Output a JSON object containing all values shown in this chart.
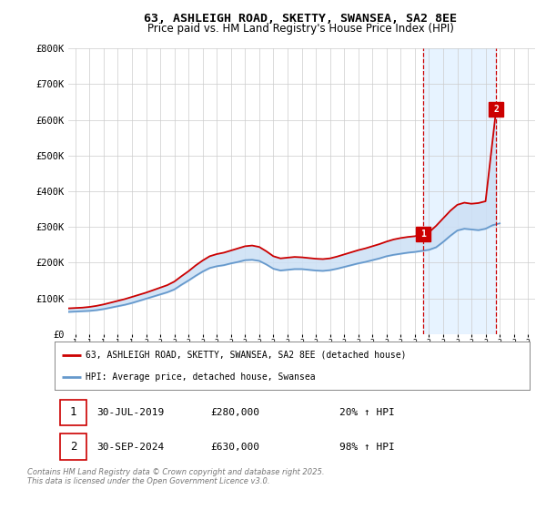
{
  "title": "63, ASHLEIGH ROAD, SKETTY, SWANSEA, SA2 8EE",
  "subtitle": "Price paid vs. HM Land Registry's House Price Index (HPI)",
  "hpi_label": "HPI: Average price, detached house, Swansea",
  "property_label": "63, ASHLEIGH ROAD, SKETTY, SWANSEA, SA2 8EE (detached house)",
  "footnote": "Contains HM Land Registry data © Crown copyright and database right 2025.\nThis data is licensed under the Open Government Licence v3.0.",
  "sale1": {
    "date": "30-JUL-2019",
    "price": 280000,
    "hpi_pct": "20%",
    "label": "1"
  },
  "sale2": {
    "date": "30-SEP-2024",
    "price": 630000,
    "hpi_pct": "98%",
    "label": "2"
  },
  "sale1_x": 2019.57,
  "sale2_x": 2024.75,
  "ylim": [
    0,
    800000
  ],
  "xlim": [
    1994.5,
    2027.5
  ],
  "yticks": [
    0,
    100000,
    200000,
    300000,
    400000,
    500000,
    600000,
    700000,
    800000
  ],
  "ytick_labels": [
    "£0",
    "£100K",
    "£200K",
    "£300K",
    "£400K",
    "£500K",
    "£600K",
    "£700K",
    "£800K"
  ],
  "xticks": [
    1995,
    1996,
    1997,
    1998,
    1999,
    2000,
    2001,
    2002,
    2003,
    2004,
    2005,
    2006,
    2007,
    2008,
    2009,
    2010,
    2011,
    2012,
    2013,
    2014,
    2015,
    2016,
    2017,
    2018,
    2019,
    2020,
    2021,
    2022,
    2023,
    2024,
    2025,
    2026,
    2027
  ],
  "red_color": "#cc0000",
  "blue_color": "#6699cc",
  "fill_color": "#cce0f5",
  "grid_color": "#cccccc",
  "bg_color": "#ffffff",
  "span_color": "#ddeeff",
  "hpi_data_x": [
    1994.5,
    1995.0,
    1995.5,
    1996.0,
    1996.5,
    1997.0,
    1997.5,
    1998.0,
    1998.5,
    1999.0,
    1999.5,
    2000.0,
    2000.5,
    2001.0,
    2001.5,
    2002.0,
    2002.5,
    2003.0,
    2003.5,
    2004.0,
    2004.5,
    2005.0,
    2005.5,
    2006.0,
    2006.5,
    2007.0,
    2007.5,
    2008.0,
    2008.5,
    2009.0,
    2009.5,
    2010.0,
    2010.5,
    2011.0,
    2011.5,
    2012.0,
    2012.5,
    2013.0,
    2013.5,
    2014.0,
    2014.5,
    2015.0,
    2015.5,
    2016.0,
    2016.5,
    2017.0,
    2017.5,
    2018.0,
    2018.5,
    2019.0,
    2019.5,
    2020.0,
    2020.5,
    2021.0,
    2021.5,
    2022.0,
    2022.5,
    2023.0,
    2023.5,
    2024.0,
    2024.5,
    2025.0
  ],
  "hpi_data_y": [
    62000,
    63000,
    64000,
    65000,
    67000,
    70000,
    74000,
    78000,
    82000,
    87000,
    93000,
    99000,
    105000,
    111000,
    117000,
    125000,
    138000,
    150000,
    163000,
    175000,
    185000,
    190000,
    193000,
    198000,
    202000,
    207000,
    208000,
    205000,
    195000,
    183000,
    178000,
    180000,
    182000,
    182000,
    180000,
    178000,
    177000,
    179000,
    183000,
    188000,
    193000,
    198000,
    202000,
    207000,
    212000,
    218000,
    222000,
    225000,
    228000,
    230000,
    233000,
    236000,
    243000,
    258000,
    275000,
    290000,
    295000,
    293000,
    291000,
    295000,
    305000,
    310000
  ],
  "red_data_x": [
    1994.5,
    1995.0,
    1995.5,
    1996.0,
    1996.5,
    1997.0,
    1997.5,
    1998.0,
    1998.5,
    1999.0,
    1999.5,
    2000.0,
    2000.5,
    2001.0,
    2001.5,
    2002.0,
    2002.5,
    2003.0,
    2003.5,
    2004.0,
    2004.5,
    2005.0,
    2005.5,
    2006.0,
    2006.5,
    2007.0,
    2007.5,
    2008.0,
    2008.5,
    2009.0,
    2009.5,
    2010.0,
    2010.5,
    2011.0,
    2011.5,
    2012.0,
    2012.5,
    2013.0,
    2013.5,
    2014.0,
    2014.5,
    2015.0,
    2015.5,
    2016.0,
    2016.5,
    2017.0,
    2017.5,
    2018.0,
    2018.5,
    2019.0,
    2019.57,
    2019.8,
    2020.0,
    2020.5,
    2021.0,
    2021.5,
    2022.0,
    2022.5,
    2023.0,
    2023.5,
    2024.0,
    2024.75
  ],
  "red_data_y": [
    72000,
    73000,
    74000,
    76000,
    79000,
    83000,
    88000,
    93000,
    98000,
    104000,
    110000,
    116000,
    123000,
    130000,
    137000,
    147000,
    162000,
    176000,
    192000,
    206000,
    218000,
    224000,
    228000,
    234000,
    240000,
    246000,
    248000,
    244000,
    232000,
    218000,
    212000,
    214000,
    216000,
    215000,
    213000,
    211000,
    210000,
    212000,
    217000,
    223000,
    229000,
    235000,
    240000,
    246000,
    252000,
    259000,
    265000,
    269000,
    272000,
    274000,
    280000,
    282000,
    285000,
    303000,
    324000,
    345000,
    362000,
    368000,
    365000,
    367000,
    372000,
    630000
  ]
}
